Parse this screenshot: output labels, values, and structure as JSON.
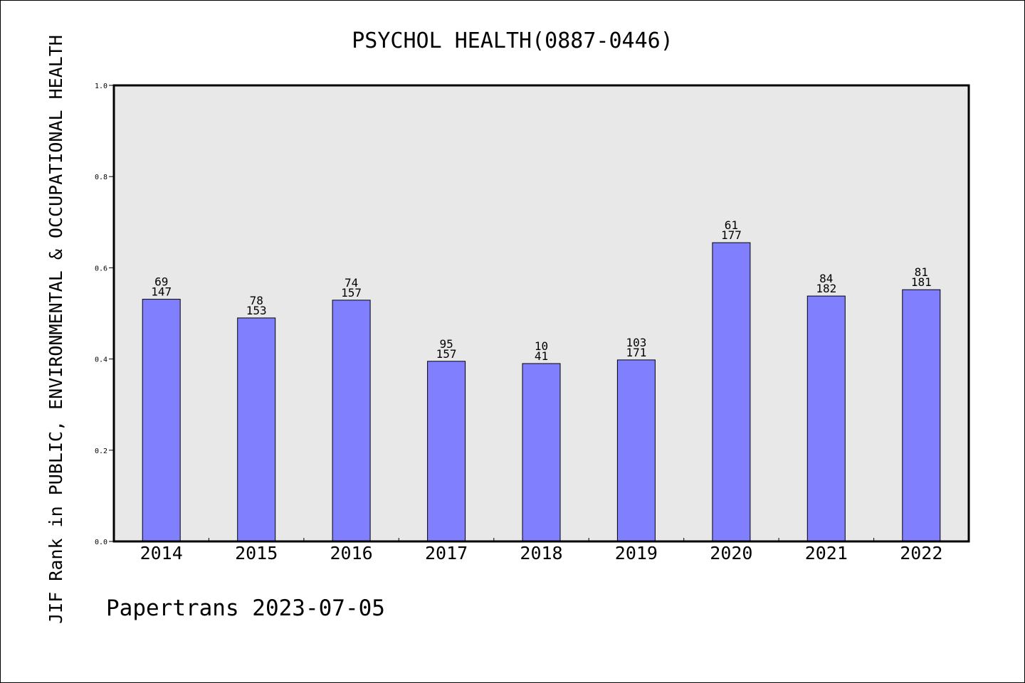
{
  "chart_data": {
    "type": "bar",
    "title": "PSYCHOL HEALTH(0887-0446)",
    "xlabel": "",
    "ylabel": "JIF Rank in PUBLIC, ENVIRONMENTAL & OCCUPATIONAL HEALTH",
    "ylim": [
      0,
      1.0
    ],
    "yticks": [
      "0.0",
      "0.2",
      "0.4",
      "0.6",
      "0.8",
      "1.0"
    ],
    "categories": [
      "2014",
      "2015",
      "2016",
      "2017",
      "2018",
      "2019",
      "2020",
      "2021",
      "2022"
    ],
    "values": [
      0.531,
      0.49,
      0.529,
      0.395,
      0.39,
      0.398,
      0.655,
      0.538,
      0.552
    ],
    "rank": [
      "69",
      "78",
      "74",
      "95",
      "10",
      "103",
      "61",
      "84",
      "81"
    ],
    "total": [
      "147",
      "153",
      "157",
      "157",
      "41",
      "171",
      "177",
      "182",
      "181"
    ],
    "grid": false,
    "colors": {
      "bar": "#8080ff",
      "plot_background": "#e8e8e8",
      "axis": "#000000"
    }
  },
  "footer": {
    "text": "Papertrans 2023-07-05"
  }
}
